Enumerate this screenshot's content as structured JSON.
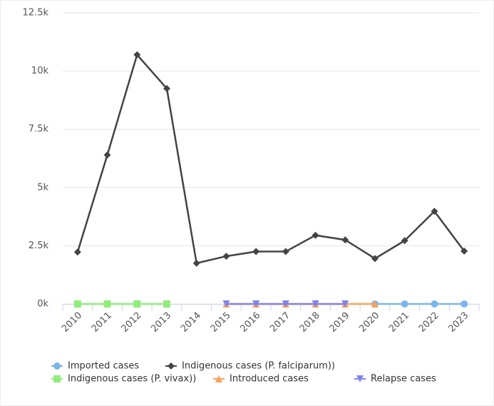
{
  "chart_data": {
    "type": "line",
    "categories": [
      "2010",
      "2011",
      "2012",
      "2013",
      "2014",
      "2015",
      "2016",
      "2017",
      "2018",
      "2019",
      "2020",
      "2021",
      "2022",
      "2023"
    ],
    "series": [
      {
        "name": "Imported cases",
        "color": "#7cb5ec",
        "marker": "circle",
        "values": [
          null,
          null,
          null,
          null,
          null,
          null,
          null,
          null,
          null,
          null,
          0,
          0,
          0,
          0
        ]
      },
      {
        "name": "Indigenous cases (P. falciparum))",
        "color": "#434348",
        "marker": "diamond",
        "values": [
          2230,
          6400,
          10700,
          9250,
          1750,
          2050,
          2250,
          2250,
          2950,
          2750,
          1950,
          2720,
          3980,
          2270
        ]
      },
      {
        "name": "Indigenous cases (P. vivax))",
        "color": "#90ed7d",
        "marker": "square",
        "values": [
          0,
          0,
          0,
          0,
          null,
          null,
          null,
          null,
          null,
          null,
          null,
          null,
          null,
          null
        ]
      },
      {
        "name": "Introduced cases",
        "color": "#f7a35c",
        "marker": "triangle",
        "values": [
          null,
          null,
          null,
          null,
          null,
          0,
          0,
          0,
          0,
          0,
          0,
          null,
          null,
          null
        ]
      },
      {
        "name": "Relapse cases",
        "color": "#8085e9",
        "marker": "triangle-down",
        "values": [
          null,
          null,
          null,
          null,
          null,
          0,
          0,
          0,
          0,
          0,
          null,
          null,
          null,
          null
        ]
      }
    ],
    "ylim": [
      0,
      12500
    ],
    "yticks": [
      {
        "value": 0,
        "label": "0k"
      },
      {
        "value": 2500,
        "label": "2.5k"
      },
      {
        "value": 5000,
        "label": "5k"
      },
      {
        "value": 7500,
        "label": "7.5k"
      },
      {
        "value": 10000,
        "label": "10k"
      },
      {
        "value": 12500,
        "label": "12.5k"
      }
    ],
    "grid": true,
    "legend": "bottom"
  }
}
